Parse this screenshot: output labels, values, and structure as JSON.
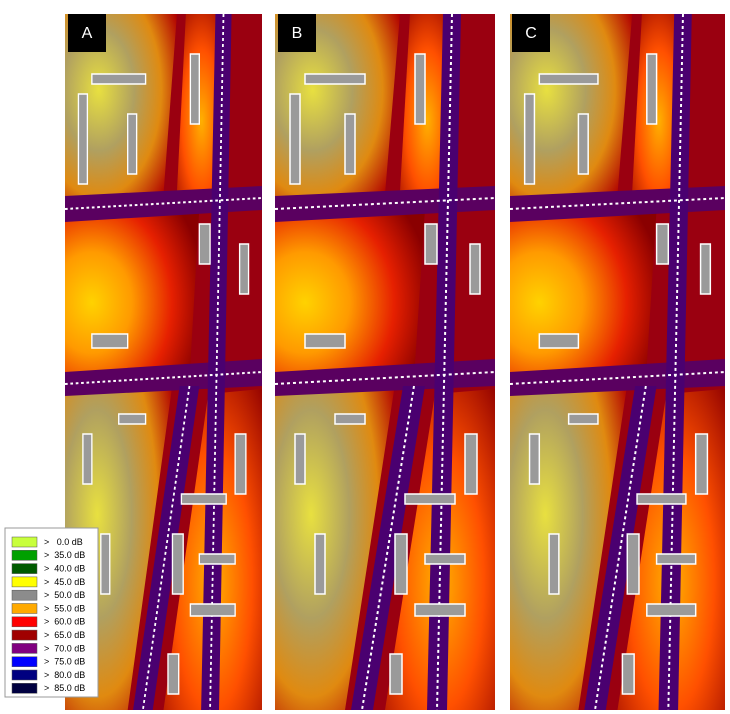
{
  "panels": [
    {
      "label": "A"
    },
    {
      "label": "B"
    },
    {
      "label": "C"
    }
  ],
  "legend": [
    {
      "label": ">   0.0 dB",
      "color": "#c8ff3c"
    },
    {
      "label": ">  35.0 dB",
      "color": "#00a000"
    },
    {
      "label": ">  40.0 dB",
      "color": "#005a00"
    },
    {
      "label": ">  45.0 dB",
      "color": "#ffff00"
    },
    {
      "label": ">  50.0 dB",
      "color": "#8c8c8c"
    },
    {
      "label": ">  55.0 dB",
      "color": "#ffaa00"
    },
    {
      "label": ">  60.0 dB",
      "color": "#ff0000"
    },
    {
      "label": ">  65.0 dB",
      "color": "#a00000"
    },
    {
      "label": ">  70.0 dB",
      "color": "#800080"
    },
    {
      "label": ">  75.0 dB",
      "color": "#0000ff"
    },
    {
      "label": ">  80.0 dB",
      "color": "#000080"
    },
    {
      "label": ">  85.0 dB",
      "color": "#000040"
    }
  ]
}
